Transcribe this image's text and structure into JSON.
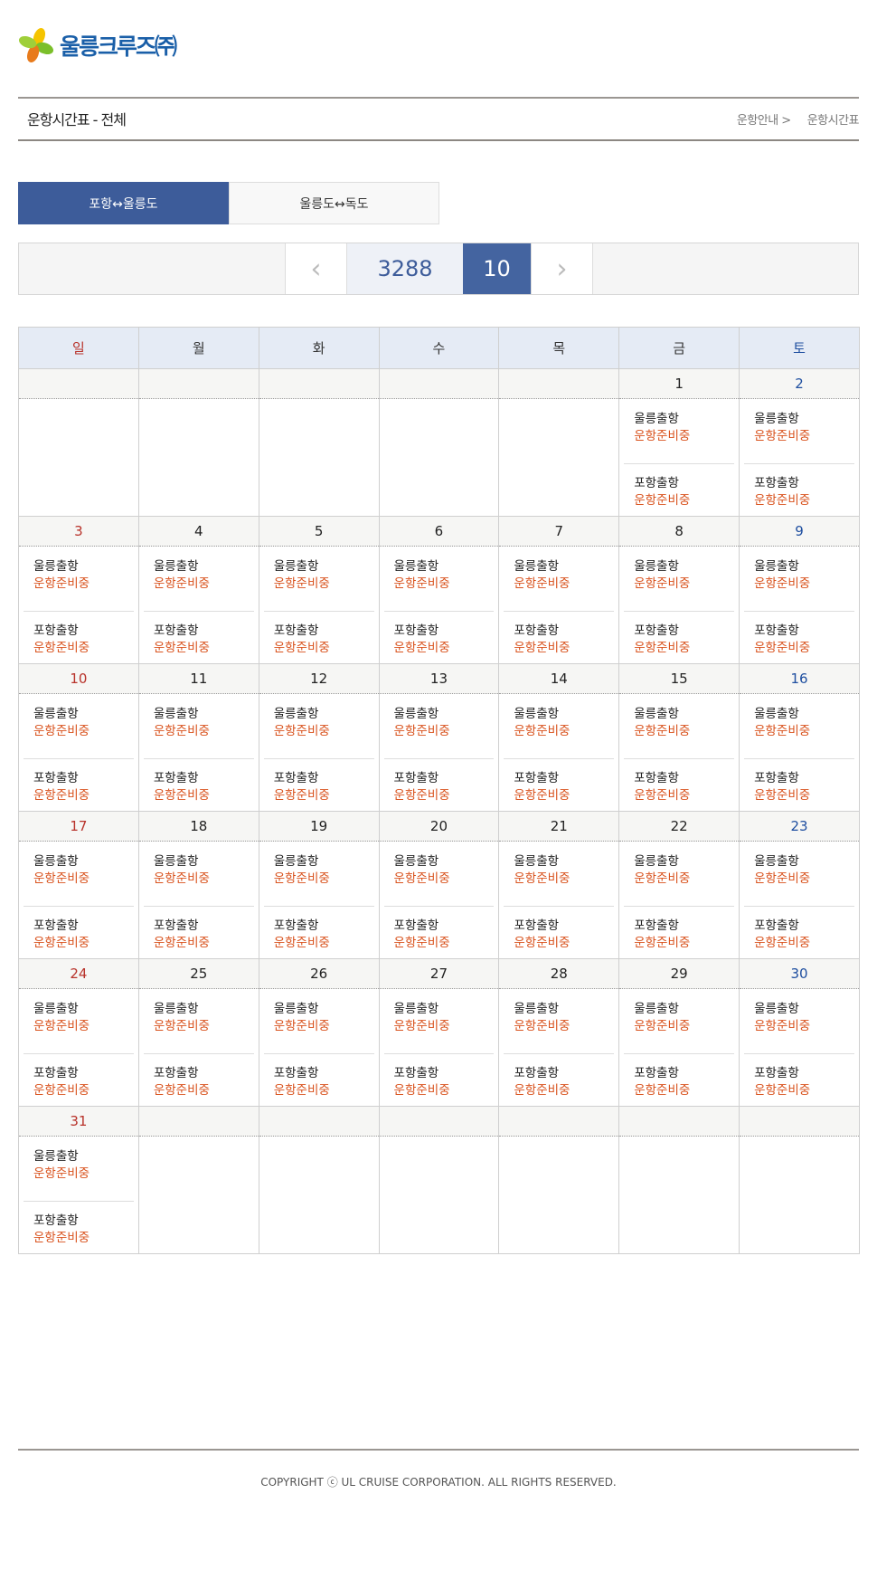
{
  "logo": {
    "text": "울릉크루즈㈜",
    "colors": [
      "#f5c400",
      "#7bbf2a",
      "#e87b1c",
      "#1a5fa8"
    ]
  },
  "header": {
    "title": "운항시간표 - 전체",
    "breadcrumb": [
      "운항안내 >",
      "운항시간표"
    ]
  },
  "tabs": [
    {
      "label": "포항↔울릉도",
      "active": true
    },
    {
      "label": "울릉도↔독도",
      "active": false
    }
  ],
  "nav": {
    "prev_icon": "chevron-left-icon",
    "year": "3288",
    "month": "10",
    "next_icon": "chevron-right-icon"
  },
  "calendar": {
    "weekdays": [
      "일",
      "월",
      "화",
      "수",
      "목",
      "금",
      "토"
    ],
    "weeks": [
      [
        "",
        "",
        "",
        "",
        "",
        "1",
        "2"
      ],
      [
        "3",
        "4",
        "5",
        "6",
        "7",
        "8",
        "9"
      ],
      [
        "10",
        "11",
        "12",
        "13",
        "14",
        "15",
        "16"
      ],
      [
        "17",
        "18",
        "19",
        "20",
        "21",
        "22",
        "23"
      ],
      [
        "24",
        "25",
        "26",
        "27",
        "28",
        "29",
        "30"
      ],
      [
        "31",
        "",
        "",
        "",
        "",
        "",
        ""
      ]
    ],
    "entries": [
      {
        "label": "울릉출항",
        "status": "운항준비중"
      },
      {
        "label": "포항출항",
        "status": "운항준비중"
      }
    ],
    "colors": {
      "sunday": "#b8322a",
      "saturday": "#1f4fa0",
      "status": "#d9531e"
    }
  },
  "footer": {
    "copyright": "COPYRIGHT ⓒ UL CRUISE CORPORATION. ALL RIGHTS RESERVED."
  }
}
